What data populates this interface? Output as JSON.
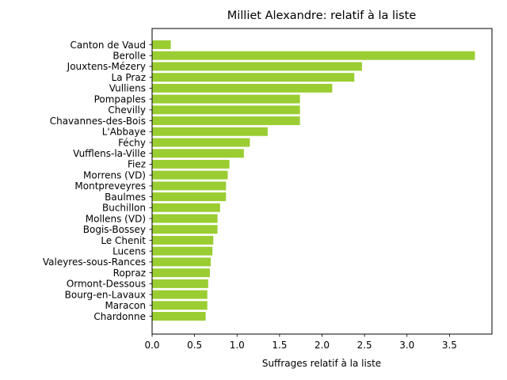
{
  "chart_data": {
    "type": "bar",
    "orientation": "horizontal",
    "title": "Milliet Alexandre: relatif à la liste",
    "xlabel": "Suffrages relatif à la liste",
    "ylabel": "",
    "xlim": [
      0,
      4.0
    ],
    "xticks": [
      "0.0",
      "0.5",
      "1.0",
      "1.5",
      "2.0",
      "2.5",
      "3.0",
      "3.5"
    ],
    "bar_color": "#9acd32",
    "grid": false,
    "categories": [
      "Canton de Vaud",
      "Berolle",
      "Jouxtens-Mézery",
      "La Praz",
      "Vulliens",
      "Pompaples",
      "Chevilly",
      "Chavannes-des-Bois",
      "L'Abbaye",
      "Féchy",
      "Vufflens-la-Ville",
      "Fiez",
      "Morrens (VD)",
      "Montpreveyres",
      "Baulmes",
      "Buchillon",
      "Mollens (VD)",
      "Bogis-Bossey",
      "Le Chenit",
      "Lucens",
      "Valeyres-sous-Rances",
      "Ropraz",
      "Ormont-Dessous",
      "Bourg-en-Lavaux",
      "Maracon",
      "Chardonne"
    ],
    "values": [
      0.22,
      3.8,
      2.47,
      2.38,
      2.12,
      1.74,
      1.74,
      1.74,
      1.36,
      1.15,
      1.08,
      0.91,
      0.89,
      0.87,
      0.87,
      0.8,
      0.77,
      0.77,
      0.72,
      0.71,
      0.69,
      0.68,
      0.66,
      0.65,
      0.65,
      0.63
    ]
  }
}
